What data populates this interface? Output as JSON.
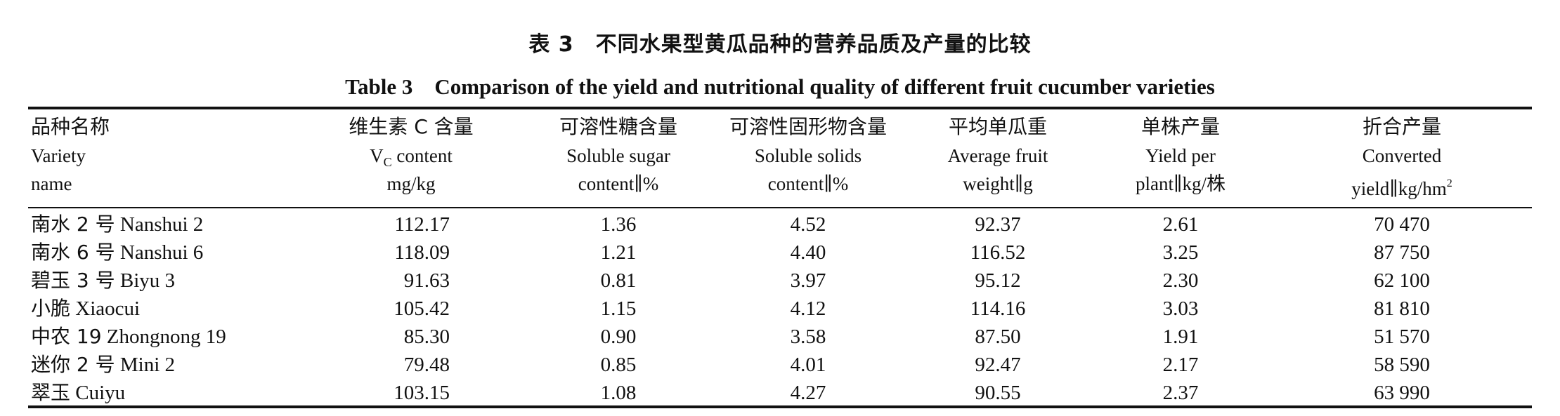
{
  "title_cn": "表 3　不同水果型黄瓜品种的营养品质及产量的比较",
  "title_en": "Table 3　Comparison of the yield and nutritional quality of different fruit cucumber varieties",
  "headers": {
    "variety": {
      "cn": "品种名称",
      "en1": "Variety",
      "en2": "name"
    },
    "vc": {
      "cn": "维生素 C 含量",
      "en1_pre": "V",
      "en1_sub": "C",
      "en1_post": " content",
      "en2": "mg/kg"
    },
    "sugar": {
      "cn": "可溶性糖含量",
      "en1": "Soluble sugar",
      "en2": "content∥%"
    },
    "solids": {
      "cn": "可溶性固形物含量",
      "en1": "Soluble solids",
      "en2": "content∥%"
    },
    "weight": {
      "cn": "平均单瓜重",
      "en1": "Average fruit",
      "en2": "weight∥g"
    },
    "plant": {
      "cn": "单株产量",
      "en1": "Yield per",
      "en2": "plant∥kg/株"
    },
    "converted": {
      "cn": "折合产量",
      "en1": "Converted",
      "en2_pre": "yield∥kg/hm",
      "en2_sup": "2"
    }
  },
  "rows": [
    {
      "cn": "南水 2 号",
      "en": "Nanshui 2",
      "vc": "112.17",
      "sugar": "1.36",
      "solids": "4.52",
      "weight": "92.37",
      "plant": "2.61",
      "converted": "70 470"
    },
    {
      "cn": "南水 6 号",
      "en": "Nanshui 6",
      "vc": "118.09",
      "sugar": "1.21",
      "solids": "4.40",
      "weight": "116.52",
      "plant": "3.25",
      "converted": "87 750"
    },
    {
      "cn": "碧玉 3 号",
      "en": "Biyu 3",
      "vc": "91.63",
      "sugar": "0.81",
      "solids": "3.97",
      "weight": "95.12",
      "plant": "2.30",
      "converted": "62 100"
    },
    {
      "cn": "小脆",
      "en": "Xiaocui",
      "vc": "105.42",
      "sugar": "1.15",
      "solids": "4.12",
      "weight": "114.16",
      "plant": "3.03",
      "converted": "81 810"
    },
    {
      "cn": "中农 19",
      "en": "Zhongnong 19",
      "vc": "85.30",
      "sugar": "0.90",
      "solids": "3.58",
      "weight": "87.50",
      "plant": "1.91",
      "converted": "51 570"
    },
    {
      "cn": "迷你 2 号",
      "en": "Mini 2",
      "vc": "79.48",
      "sugar": "0.85",
      "solids": "4.01",
      "weight": "92.47",
      "plant": "2.17",
      "converted": "58 590"
    },
    {
      "cn": "翠玉",
      "en": "Cuiyu",
      "vc": "103.15",
      "sugar": "1.08",
      "solids": "4.27",
      "weight": "90.55",
      "plant": "2.37",
      "converted": "63 990"
    }
  ]
}
